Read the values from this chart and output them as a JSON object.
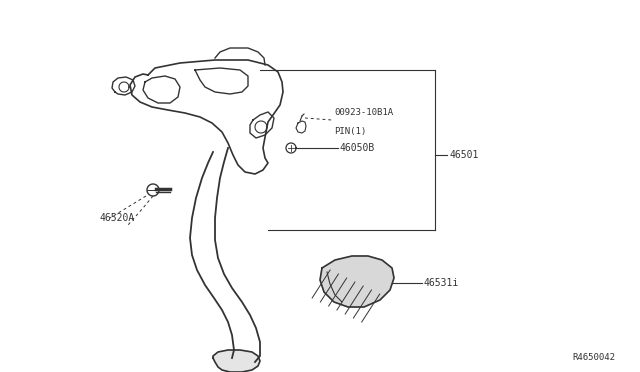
{
  "bg_color": "#ffffff",
  "line_color": "#333333",
  "text_color": "#333333",
  "diagram_ref": "R4650042",
  "labels": {
    "pin_line1": "00923-10B1A",
    "pin_line2": "PIN(1)",
    "46050B": "46050B",
    "46501": "46501",
    "46520A": "46520A",
    "46531": "46531i"
  },
  "figsize": [
    6.4,
    3.72
  ],
  "dpi": 100
}
